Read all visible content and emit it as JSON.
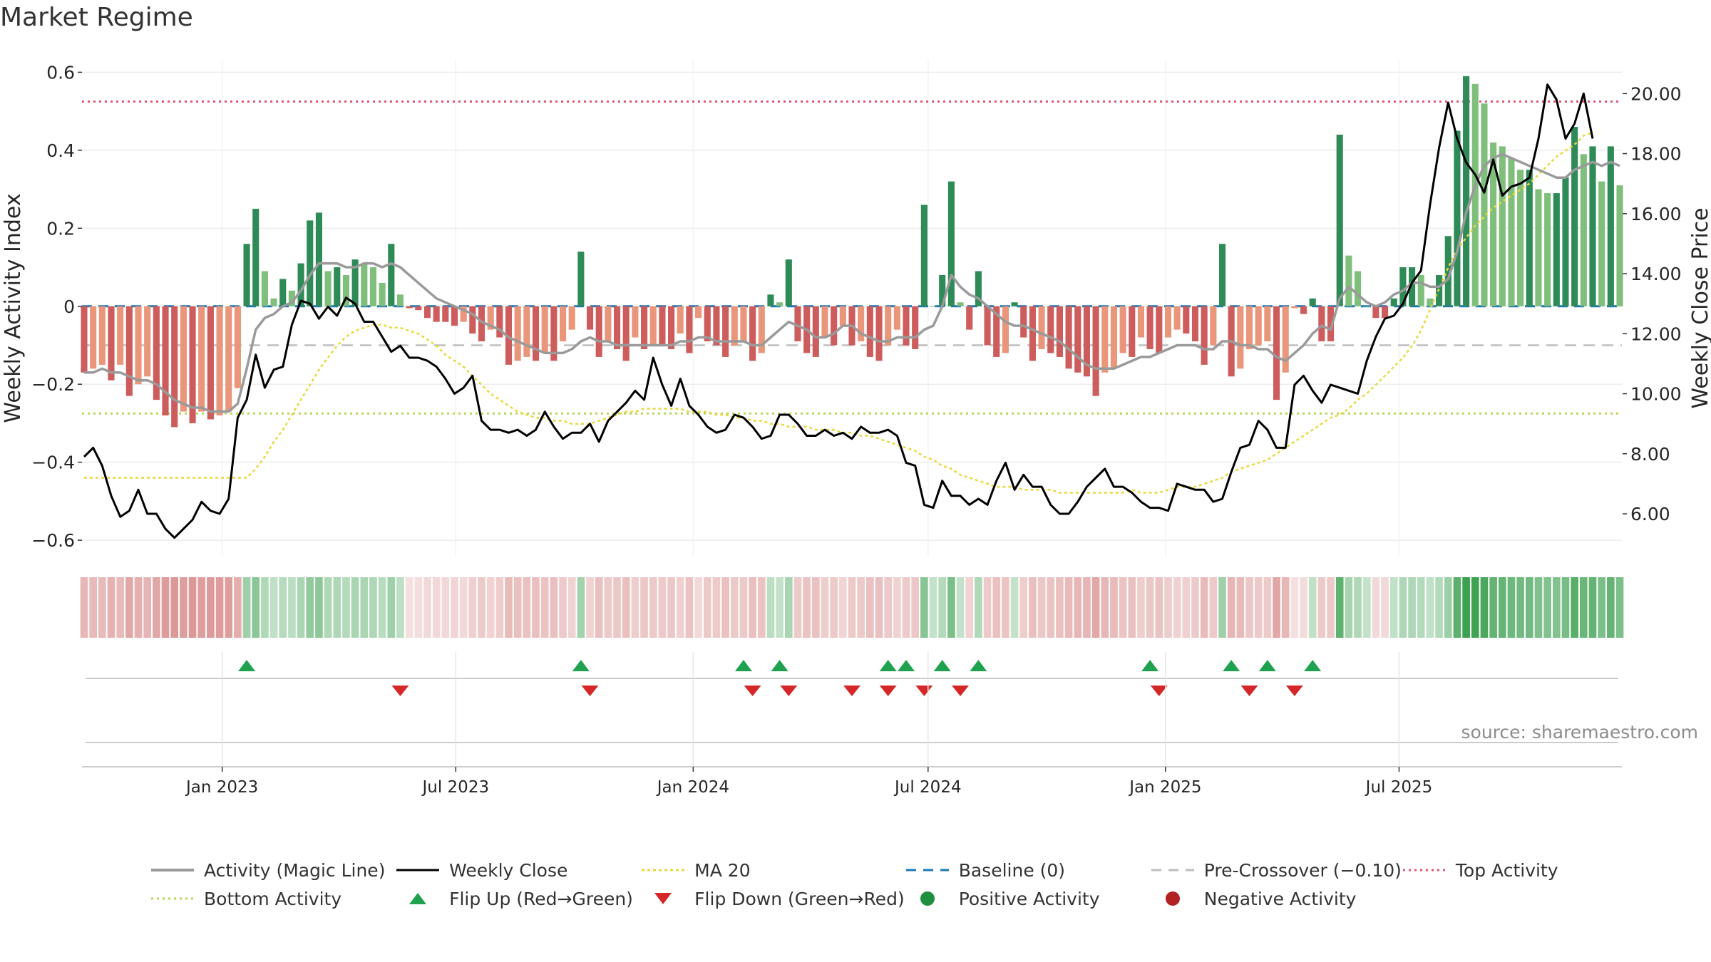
{
  "page": {
    "title": "Market Regime",
    "source": "source: sharemaestro.com"
  },
  "colors": {
    "strong_green": "#2e8b57",
    "light_green": "#7fbf7b",
    "strong_red": "#cd5c5c",
    "light_red": "#e9967a",
    "magic_line": "#9a9a9a",
    "close": "#000000",
    "ma20": "#e8d83a",
    "baseline": "#1f77b4",
    "pre_crossover": "#bdbdbd",
    "top_activity": "#e05577",
    "bottom_activity": "#b5d65a",
    "flip_up": "#1fa14f",
    "flip_down": "#d62728"
  },
  "legend": [
    {
      "label": "Activity (Magic Line)",
      "icon": "line-solid-gray"
    },
    {
      "label": "Weekly Close",
      "icon": "line-solid-black"
    },
    {
      "label": "MA 20",
      "icon": "line-dotted-yellow"
    },
    {
      "label": "Baseline (0)",
      "icon": "line-dashed-blue"
    },
    {
      "label": "Pre-Crossover (−0.10)",
      "icon": "line-dashed-gray"
    },
    {
      "label": "Top Activity",
      "icon": "line-dotted-pink"
    },
    {
      "label": "Bottom Activity",
      "icon": "line-dotted-green"
    },
    {
      "label": "Flip Up (Red→Green)",
      "icon": "triangle-up-green"
    },
    {
      "label": "Flip Down (Green→Red)",
      "icon": "triangle-down-red"
    },
    {
      "label": "Positive Activity",
      "icon": "dot-green"
    },
    {
      "label": "Negative Activity",
      "icon": "dot-red"
    }
  ],
  "chart_data": {
    "type": "bar",
    "title": "Market Regime",
    "x_start": "2022-09-16",
    "week_days": 7,
    "x_ticks": [
      {
        "date": "2023-01-01",
        "label": "Jan 2023"
      },
      {
        "date": "2023-07-01",
        "label": "Jul 2023"
      },
      {
        "date": "2024-01-01",
        "label": "Jan 2024"
      },
      {
        "date": "2024-07-01",
        "label": "Jul 2024"
      },
      {
        "date": "2025-01-01",
        "label": "Jan 2025"
      },
      {
        "date": "2025-07-01",
        "label": "Jul 2025"
      }
    ],
    "y_left": {
      "label": "Weekly Activity Index",
      "range": [
        -0.64,
        0.63
      ],
      "ticks": [
        {
          "value": 0.6,
          "label": "0.6"
        },
        {
          "value": 0.4,
          "label": "0.4"
        },
        {
          "value": 0.2,
          "label": "0.2"
        },
        {
          "value": 0,
          "label": "0"
        },
        {
          "value": -0.2,
          "label": "−0.2"
        },
        {
          "value": -0.4,
          "label": "−0.4"
        },
        {
          "value": -0.6,
          "label": "−0.6"
        }
      ]
    },
    "y_right": {
      "label": "Weekly Close Price",
      "range": [
        4.6,
        21.1
      ],
      "ticks": [
        {
          "value": 20,
          "label": "20.00"
        },
        {
          "value": 18,
          "label": "18.00"
        },
        {
          "value": 16,
          "label": "16.00"
        },
        {
          "value": 14,
          "label": "14.00"
        },
        {
          "value": 12,
          "label": "12.00"
        },
        {
          "value": 10,
          "label": "10.00"
        },
        {
          "value": 8,
          "label": "8.00"
        },
        {
          "value": 6,
          "label": "6.00"
        }
      ]
    },
    "reference_lines": {
      "baseline": 0,
      "pre_crossover": -0.1,
      "top_activity": 0.525,
      "bottom_activity": -0.275
    },
    "activity": [
      -0.17,
      -0.16,
      -0.15,
      -0.19,
      -0.15,
      -0.23,
      -0.2,
      -0.18,
      -0.24,
      -0.28,
      -0.31,
      -0.27,
      -0.3,
      -0.27,
      -0.29,
      -0.28,
      -0.27,
      -0.21,
      0.16,
      0.25,
      0.09,
      0.02,
      0.07,
      0.04,
      0.11,
      0.22,
      0.24,
      0.09,
      0.1,
      0.08,
      0.12,
      0.11,
      0.1,
      0.06,
      0.16,
      0.03,
      -0.005,
      -0.01,
      -0.03,
      -0.04,
      -0.04,
      -0.05,
      -0.04,
      -0.07,
      -0.09,
      -0.06,
      -0.08,
      -0.15,
      -0.14,
      -0.13,
      -0.14,
      -0.12,
      -0.14,
      -0.09,
      -0.06,
      0.14,
      -0.06,
      -0.13,
      -0.09,
      -0.11,
      -0.14,
      -0.08,
      -0.11,
      -0.1,
      -0.1,
      -0.11,
      -0.07,
      -0.12,
      -0.03,
      -0.09,
      -0.1,
      -0.13,
      -0.1,
      -0.09,
      -0.14,
      -0.12,
      0.03,
      0.01,
      0.12,
      -0.09,
      -0.12,
      -0.13,
      -0.08,
      -0.1,
      -0.05,
      -0.1,
      -0.09,
      -0.13,
      -0.14,
      -0.1,
      -0.06,
      -0.1,
      -0.11,
      0.26,
      0.0,
      0.08,
      0.32,
      0.01,
      -0.06,
      0.09,
      -0.1,
      -0.13,
      -0.12,
      0.01,
      -0.08,
      -0.14,
      -0.11,
      -0.12,
      -0.13,
      -0.16,
      -0.17,
      -0.18,
      -0.23,
      -0.17,
      -0.16,
      -0.12,
      -0.13,
      -0.08,
      -0.11,
      -0.12,
      -0.08,
      -0.06,
      -0.07,
      -0.09,
      -0.15,
      -0.1,
      0.16,
      -0.18,
      -0.16,
      -0.11,
      -0.1,
      -0.09,
      -0.24,
      -0.17,
      -0.005,
      -0.02,
      0.02,
      -0.09,
      -0.09,
      0.44,
      0.13,
      0.09,
      0.0,
      -0.03,
      -0.03,
      0.02,
      0.1,
      0.1,
      0.08,
      0.02,
      0.08,
      0.18,
      0.45,
      0.59,
      0.57,
      0.52,
      0.42,
      0.41,
      0.38,
      0.35,
      0.35,
      0.3,
      0.29,
      0.29,
      0.33,
      0.46,
      0.39,
      0.41,
      0.32,
      0.41,
      0.31
    ],
    "magic_line": [
      -0.17,
      -0.17,
      -0.16,
      -0.17,
      -0.17,
      -0.18,
      -0.19,
      -0.19,
      -0.2,
      -0.22,
      -0.24,
      -0.25,
      -0.26,
      -0.26,
      -0.27,
      -0.27,
      -0.27,
      -0.25,
      -0.16,
      -0.06,
      -0.03,
      -0.02,
      0.0,
      0.01,
      0.04,
      0.08,
      0.11,
      0.11,
      0.11,
      0.1,
      0.1,
      0.11,
      0.11,
      0.1,
      0.11,
      0.1,
      0.08,
      0.06,
      0.04,
      0.02,
      0.01,
      0.0,
      -0.01,
      -0.02,
      -0.04,
      -0.05,
      -0.06,
      -0.08,
      -0.09,
      -0.1,
      -0.11,
      -0.12,
      -0.12,
      -0.12,
      -0.11,
      -0.09,
      -0.08,
      -0.09,
      -0.09,
      -0.1,
      -0.1,
      -0.1,
      -0.1,
      -0.1,
      -0.1,
      -0.1,
      -0.09,
      -0.09,
      -0.08,
      -0.08,
      -0.09,
      -0.09,
      -0.09,
      -0.09,
      -0.1,
      -0.1,
      -0.08,
      -0.06,
      -0.04,
      -0.05,
      -0.06,
      -0.08,
      -0.08,
      -0.07,
      -0.05,
      -0.05,
      -0.07,
      -0.08,
      -0.09,
      -0.09,
      -0.08,
      -0.08,
      -0.08,
      -0.06,
      -0.05,
      0.0,
      0.08,
      0.05,
      0.03,
      0.02,
      0.0,
      -0.02,
      -0.04,
      -0.05,
      -0.05,
      -0.06,
      -0.07,
      -0.08,
      -0.09,
      -0.11,
      -0.13,
      -0.15,
      -0.16,
      -0.16,
      -0.16,
      -0.15,
      -0.14,
      -0.13,
      -0.13,
      -0.12,
      -0.11,
      -0.1,
      -0.1,
      -0.1,
      -0.11,
      -0.11,
      -0.09,
      -0.09,
      -0.1,
      -0.1,
      -0.11,
      -0.11,
      -0.13,
      -0.14,
      -0.12,
      -0.1,
      -0.07,
      -0.05,
      -0.06,
      0.02,
      0.05,
      0.03,
      0.01,
      -0.0,
      0.01,
      0.03,
      0.04,
      0.06,
      0.06,
      0.05,
      0.05,
      0.07,
      0.14,
      0.24,
      0.31,
      0.36,
      0.38,
      0.39,
      0.38,
      0.37,
      0.36,
      0.35,
      0.34,
      0.33,
      0.33,
      0.35,
      0.36,
      0.37,
      0.36,
      0.37,
      0.36
    ],
    "close": [
      7.9,
      8.2,
      7.6,
      6.6,
      5.9,
      6.1,
      6.8,
      6.0,
      6.0,
      5.5,
      5.2,
      5.5,
      5.8,
      6.4,
      6.1,
      6.0,
      6.5,
      9.2,
      9.8,
      11.3,
      10.2,
      10.8,
      10.9,
      12.3,
      13.1,
      13.0,
      12.5,
      12.9,
      12.6,
      13.2,
      13.0,
      12.4,
      12.4,
      11.9,
      11.4,
      11.6,
      11.2,
      11.2,
      11.1,
      10.9,
      10.5,
      10.0,
      10.2,
      10.6,
      9.1,
      8.8,
      8.8,
      8.7,
      8.8,
      8.6,
      8.8,
      9.4,
      8.9,
      8.5,
      8.7,
      8.7,
      9.0,
      8.4,
      9.1,
      9.4,
      9.7,
      10.1,
      9.8,
      11.2,
      10.3,
      9.6,
      10.5,
      9.6,
      9.3,
      8.9,
      8.7,
      8.8,
      9.3,
      9.2,
      8.9,
      8.5,
      8.6,
      9.3,
      9.3,
      9.0,
      8.6,
      8.6,
      8.8,
      8.6,
      8.7,
      8.5,
      8.9,
      8.7,
      8.7,
      8.8,
      8.6,
      7.7,
      7.6,
      6.3,
      6.2,
      7.1,
      6.6,
      6.6,
      6.3,
      6.5,
      6.3,
      7.1,
      7.7,
      6.8,
      7.3,
      6.9,
      6.9,
      6.3,
      6.0,
      6.0,
      6.4,
      6.9,
      7.2,
      7.5,
      6.9,
      6.9,
      6.7,
      6.4,
      6.2,
      6.2,
      6.1,
      7.0,
      6.9,
      6.8,
      6.8,
      6.4,
      6.5,
      7.4,
      8.2,
      8.3,
      9.1,
      8.8,
      8.2,
      8.2,
      10.3,
      10.6,
      10.1,
      9.7,
      10.3,
      10.2,
      10.1,
      10.0,
      11.1,
      11.9,
      12.5,
      12.6,
      13.0,
      13.7,
      14.1,
      16.3,
      18.2,
      19.7,
      18.5,
      17.7,
      17.3,
      16.7,
      17.8,
      16.6,
      16.9,
      17.0,
      17.2,
      18.5,
      20.3,
      19.8,
      18.5,
      19.0,
      20.0,
      18.5
    ],
    "ma20": [
      7.2,
      7.2,
      7.2,
      7.2,
      7.2,
      7.2,
      7.2,
      7.2,
      7.2,
      7.2,
      7.2,
      7.2,
      7.2,
      7.2,
      7.2,
      7.2,
      7.2,
      7.2,
      7.2,
      7.5,
      7.9,
      8.4,
      8.8,
      9.3,
      9.8,
      10.3,
      10.8,
      11.2,
      11.6,
      11.9,
      12.1,
      12.2,
      12.3,
      12.3,
      12.2,
      12.2,
      12.1,
      12.0,
      11.8,
      11.6,
      11.3,
      11.1,
      10.9,
      10.6,
      10.3,
      10.0,
      9.8,
      9.6,
      9.4,
      9.3,
      9.2,
      9.2,
      9.1,
      9.1,
      9.0,
      9.0,
      9.0,
      9.1,
      9.2,
      9.3,
      9.4,
      9.4,
      9.5,
      9.5,
      9.5,
      9.5,
      9.5,
      9.4,
      9.4,
      9.4,
      9.3,
      9.3,
      9.2,
      9.2,
      9.1,
      9.1,
      9.0,
      9.0,
      8.9,
      8.9,
      8.9,
      8.8,
      8.8,
      8.8,
      8.7,
      8.7,
      8.6,
      8.6,
      8.5,
      8.4,
      8.3,
      8.2,
      8.1,
      7.9,
      7.8,
      7.6,
      7.5,
      7.3,
      7.2,
      7.1,
      7.0,
      6.9,
      6.9,
      6.9,
      6.8,
      6.8,
      6.8,
      6.8,
      6.7,
      6.7,
      6.7,
      6.7,
      6.7,
      6.7,
      6.7,
      6.7,
      6.8,
      6.7,
      6.7,
      6.7,
      6.8,
      6.9,
      6.9,
      6.9,
      7.0,
      7.1,
      7.2,
      7.4,
      7.5,
      7.6,
      7.7,
      7.8,
      8.0,
      8.2,
      8.4,
      8.6,
      8.8,
      9.0,
      9.2,
      9.3,
      9.5,
      9.8,
      10.0,
      10.3,
      10.6,
      10.9,
      11.2,
      11.6,
      12.1,
      12.8,
      13.5,
      14.2,
      14.8,
      15.2,
      15.6,
      15.9,
      16.2,
      16.4,
      16.6,
      16.8,
      17.0,
      17.3,
      17.6,
      17.9,
      18.1,
      18.3,
      18.6,
      18.7
    ],
    "flip_up_weeks": [
      18,
      55,
      73,
      77,
      89,
      91,
      95,
      99,
      118,
      127,
      131,
      136
    ],
    "flip_down_weeks": [
      35,
      56,
      74,
      78,
      85,
      89,
      93,
      97,
      119,
      129,
      134
    ]
  }
}
